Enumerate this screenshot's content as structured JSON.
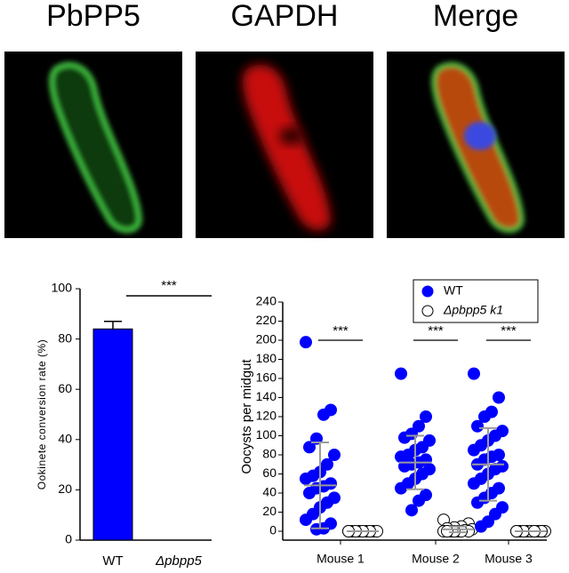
{
  "panels": [
    {
      "title": "PbPP5"
    },
    {
      "title": "GAPDH"
    },
    {
      "title": "Merge"
    }
  ],
  "chart_data": [
    {
      "type": "bar",
      "ylabel": "Ookinete conversion rate (%)",
      "categories": [
        "WT",
        "Δpbpp5"
      ],
      "values": [
        84,
        0
      ],
      "errors": [
        3,
        0
      ],
      "color": "#0000ff",
      "category_color": "#1e5a1e",
      "ylim": [
        0,
        100
      ],
      "yticks": [
        0,
        20,
        40,
        60,
        80,
        100
      ],
      "annotations": [
        {
          "text": "***",
          "between": [
            0,
            1
          ]
        }
      ]
    },
    {
      "type": "dot",
      "ylabel": "Oocysts per midgut",
      "categories": [
        "Mouse 1",
        "Mouse 2",
        "Mouse 3"
      ],
      "series": [
        {
          "name": "WT",
          "color": "#0000ff",
          "filled": true,
          "values": [
            [
              198,
              127,
              122,
              97,
              88,
              80,
              70,
              62,
              58,
              55,
              50,
              47,
              45,
              40,
              35,
              30,
              25,
              18,
              12,
              8,
              3,
              2
            ],
            [
              165,
              120,
              110,
              102,
              98,
              95,
              88,
              85,
              80,
              78,
              75,
              72,
              70,
              68,
              65,
              60,
              55,
              50,
              45,
              38,
              32,
              22
            ],
            [
              165,
              140,
              125,
              120,
              110,
              105,
              100,
              95,
              90,
              85,
              80,
              78,
              75,
              70,
              68,
              65,
              60,
              55,
              50,
              45,
              40,
              35,
              30,
              25,
              18,
              10,
              5
            ]
          ],
          "mean": [
            48,
            72,
            70
          ],
          "sd": [
            45,
            28,
            38
          ]
        },
        {
          "name": "Δpbpp5 k1",
          "color": "#000000",
          "filled": false,
          "values": [
            [
              0,
              0,
              0,
              0,
              0,
              0,
              0,
              0,
              0,
              0
            ],
            [
              12,
              8,
              5,
              4,
              3,
              2,
              1,
              0,
              0,
              0,
              0,
              0,
              0,
              0
            ],
            [
              0,
              0,
              0,
              0,
              0,
              0,
              0,
              0,
              0,
              0,
              0,
              0
            ]
          ],
          "mean": [
            0,
            2,
            0
          ],
          "sd": [
            0,
            3,
            0
          ]
        }
      ],
      "ylim": [
        0,
        240
      ],
      "yticks": [
        0,
        20,
        40,
        60,
        80,
        100,
        120,
        140,
        160,
        180,
        200,
        220,
        240
      ],
      "legend": "upper right",
      "annotations": [
        {
          "text": "***",
          "category": 0
        },
        {
          "text": "***",
          "category": 1
        },
        {
          "text": "***",
          "category": 2
        }
      ]
    }
  ]
}
